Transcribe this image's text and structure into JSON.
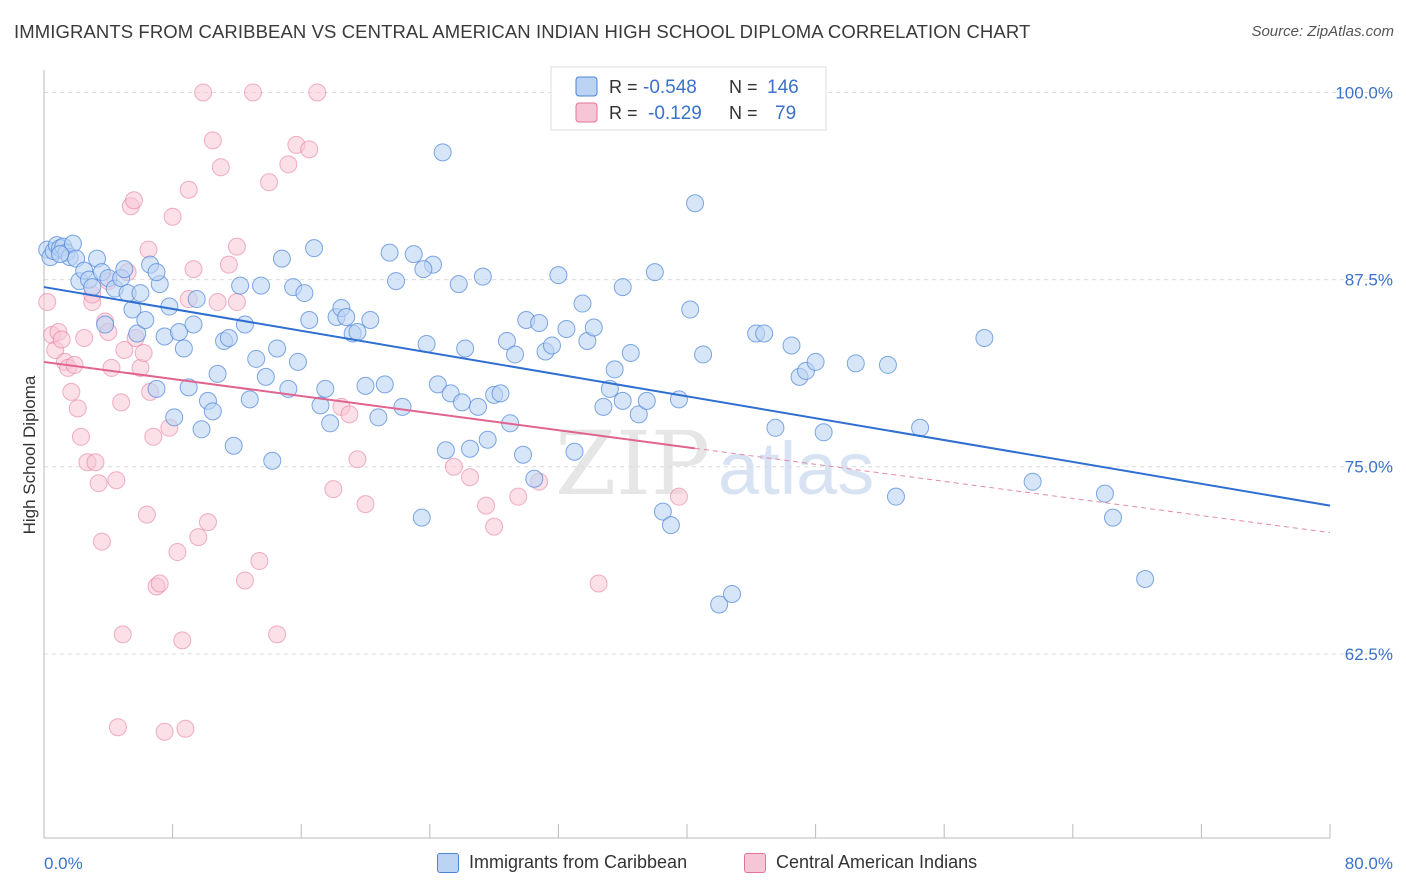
{
  "header": {
    "title": "IMMIGRANTS FROM CARIBBEAN VS CENTRAL AMERICAN INDIAN HIGH SCHOOL DIPLOMA CORRELATION CHART",
    "source": "Source: ZipAtlas.com"
  },
  "legend": {
    "rows": [
      {
        "r_label": "R =",
        "r_value": "-0.548",
        "n_label": "N =",
        "n_value": "146"
      },
      {
        "r_label": "R =",
        "r_value": "-0.129",
        "n_label": "N =",
        "n_value": "79"
      }
    ]
  },
  "bottom_legend": {
    "series1": "Immigrants from Caribbean",
    "series2": "Central American Indians"
  },
  "watermark": {
    "zip": "ZIP",
    "atlas": "atlas"
  },
  "colors": {
    "blue": "#4a84d8",
    "blue_fill": "#bcd4f3",
    "pink": "#e4739b",
    "pink_fill": "#f7c6d6",
    "axis_label": "#3b72c9"
  },
  "chart_data": {
    "type": "scatter",
    "title": "IMMIGRANTS FROM CARIBBEAN VS CENTRAL AMERICAN INDIAN HIGH SCHOOL DIPLOMA CORRELATION CHART",
    "xlabel": "",
    "ylabel": "High School Diploma",
    "xlim": [
      0,
      80
    ],
    "ylim": [
      50.2,
      101.5
    ],
    "x_tick_labels": [
      "0.0%",
      "80.0%"
    ],
    "y_ticks": [
      62.5,
      75.0,
      87.5,
      100.0
    ],
    "y_tick_labels": [
      "62.5%",
      "75.0%",
      "87.5%",
      "100.0%"
    ],
    "grid": true,
    "legend_position": "top-center",
    "series": [
      {
        "name": "Immigrants from Caribbean",
        "color": "#4a84d8",
        "R": -0.548,
        "N": 146,
        "trend": {
          "x": [
            0,
            80
          ],
          "y": [
            87.0,
            72.4
          ]
        },
        "points": [
          [
            0.2,
            89.5
          ],
          [
            0.4,
            89.0
          ],
          [
            0.6,
            89.4
          ],
          [
            0.8,
            89.8
          ],
          [
            1.0,
            89.6
          ],
          [
            1.2,
            89.7
          ],
          [
            1.4,
            89.3
          ],
          [
            1.6,
            89.0
          ],
          [
            1.8,
            89.9
          ],
          [
            2.0,
            88.9
          ],
          [
            2.2,
            87.4
          ],
          [
            2.5,
            88.1
          ],
          [
            2.8,
            87.5
          ],
          [
            3.0,
            87.0
          ],
          [
            3.3,
            88.9
          ],
          [
            3.6,
            88.0
          ],
          [
            3.8,
            84.5
          ],
          [
            4.0,
            87.6
          ],
          [
            4.4,
            86.9
          ],
          [
            4.8,
            87.6
          ],
          [
            5.0,
            88.2
          ],
          [
            5.2,
            86.6
          ],
          [
            5.5,
            85.5
          ],
          [
            5.8,
            83.9
          ],
          [
            6.0,
            86.6
          ],
          [
            6.3,
            84.8
          ],
          [
            6.6,
            88.5
          ],
          [
            7.0,
            80.2
          ],
          [
            7.2,
            87.2
          ],
          [
            7.5,
            83.7
          ],
          [
            7.8,
            85.7
          ],
          [
            8.1,
            78.3
          ],
          [
            8.4,
            84.0
          ],
          [
            8.7,
            82.9
          ],
          [
            9.0,
            80.3
          ],
          [
            9.3,
            84.5
          ],
          [
            9.5,
            86.2
          ],
          [
            9.8,
            77.5
          ],
          [
            10.2,
            79.4
          ],
          [
            10.5,
            78.7
          ],
          [
            10.8,
            81.2
          ],
          [
            11.2,
            83.4
          ],
          [
            11.5,
            83.6
          ],
          [
            11.8,
            76.4
          ],
          [
            12.2,
            87.1
          ],
          [
            12.5,
            84.5
          ],
          [
            12.8,
            79.5
          ],
          [
            13.2,
            82.2
          ],
          [
            13.5,
            87.1
          ],
          [
            13.8,
            81.0
          ],
          [
            14.2,
            75.4
          ],
          [
            14.5,
            82.9
          ],
          [
            14.8,
            88.9
          ],
          [
            15.2,
            80.2
          ],
          [
            15.5,
            87.0
          ],
          [
            15.8,
            82.0
          ],
          [
            16.2,
            86.6
          ],
          [
            16.5,
            84.8
          ],
          [
            16.8,
            89.6
          ],
          [
            17.2,
            79.1
          ],
          [
            17.5,
            80.2
          ],
          [
            17.8,
            77.9
          ],
          [
            18.2,
            85.0
          ],
          [
            18.5,
            85.6
          ],
          [
            18.8,
            85.0
          ],
          [
            19.2,
            83.9
          ],
          [
            19.5,
            84.0
          ],
          [
            20.0,
            80.4
          ],
          [
            20.3,
            84.8
          ],
          [
            20.8,
            78.3
          ],
          [
            21.2,
            80.5
          ],
          [
            21.5,
            89.3
          ],
          [
            21.9,
            87.4
          ],
          [
            22.3,
            79.0
          ],
          [
            23.0,
            89.2
          ],
          [
            23.5,
            71.6
          ],
          [
            23.8,
            83.2
          ],
          [
            24.2,
            88.5
          ],
          [
            24.5,
            80.5
          ],
          [
            25.0,
            76.1
          ],
          [
            25.3,
            79.9
          ],
          [
            25.8,
            87.2
          ],
          [
            26.0,
            79.3
          ],
          [
            26.2,
            82.9
          ],
          [
            26.5,
            76.2
          ],
          [
            27.0,
            79.0
          ],
          [
            27.3,
            87.7
          ],
          [
            27.6,
            76.8
          ],
          [
            28.0,
            79.8
          ],
          [
            28.4,
            79.9
          ],
          [
            28.8,
            83.4
          ],
          [
            29.0,
            77.9
          ],
          [
            29.3,
            82.5
          ],
          [
            29.8,
            75.8
          ],
          [
            30.0,
            84.8
          ],
          [
            30.5,
            74.2
          ],
          [
            30.8,
            84.6
          ],
          [
            31.2,
            82.7
          ],
          [
            31.6,
            83.1
          ],
          [
            32.0,
            87.8
          ],
          [
            32.5,
            84.2
          ],
          [
            33.0,
            76.0
          ],
          [
            33.5,
            85.9
          ],
          [
            33.8,
            83.4
          ],
          [
            34.2,
            84.3
          ],
          [
            34.8,
            79.0
          ],
          [
            35.2,
            80.2
          ],
          [
            35.5,
            81.5
          ],
          [
            36.0,
            79.4
          ],
          [
            36.5,
            82.6
          ],
          [
            37.0,
            78.5
          ],
          [
            37.5,
            79.4
          ],
          [
            38.0,
            88.0
          ],
          [
            38.5,
            72.0
          ],
          [
            39.0,
            71.1
          ],
          [
            39.5,
            79.5
          ],
          [
            40.2,
            85.5
          ],
          [
            41.0,
            82.5
          ],
          [
            42.0,
            65.8
          ],
          [
            42.8,
            66.5
          ],
          [
            44.3,
            83.9
          ],
          [
            44.8,
            83.9
          ],
          [
            45.5,
            77.6
          ],
          [
            46.5,
            83.1
          ],
          [
            47.0,
            81.0
          ],
          [
            47.4,
            81.4
          ],
          [
            48.0,
            82.0
          ],
          [
            48.5,
            77.3
          ],
          [
            50.5,
            81.9
          ],
          [
            52.5,
            81.8
          ],
          [
            53.0,
            73.0
          ],
          [
            54.5,
            77.6
          ],
          [
            58.5,
            83.6
          ],
          [
            61.5,
            74.0
          ],
          [
            66.0,
            73.2
          ],
          [
            66.5,
            71.6
          ],
          [
            68.5,
            67.5
          ],
          [
            24.8,
            96.0
          ],
          [
            40.5,
            92.6
          ],
          [
            23.6,
            88.2
          ],
          [
            36.0,
            87.0
          ],
          [
            7.0,
            88.0
          ],
          [
            1.0,
            89.2
          ]
        ]
      },
      {
        "name": "Central American Indians",
        "color": "#e4739b",
        "R": -0.129,
        "N": 79,
        "trend": {
          "x": [
            0,
            80
          ],
          "y": [
            82.0,
            70.6
          ]
        },
        "trend_solid_until": 40.5,
        "points": [
          [
            0.2,
            86.0
          ],
          [
            0.5,
            83.8
          ],
          [
            0.7,
            82.8
          ],
          [
            0.9,
            84.0
          ],
          [
            1.1,
            83.5
          ],
          [
            1.3,
            82.0
          ],
          [
            1.5,
            81.6
          ],
          [
            1.7,
            80.0
          ],
          [
            1.9,
            81.8
          ],
          [
            2.1,
            78.9
          ],
          [
            2.3,
            77.0
          ],
          [
            2.5,
            83.6
          ],
          [
            2.7,
            75.3
          ],
          [
            3.0,
            86.0
          ],
          [
            3.2,
            75.3
          ],
          [
            3.4,
            73.9
          ],
          [
            3.6,
            70.0
          ],
          [
            3.8,
            84.7
          ],
          [
            4.0,
            84.0
          ],
          [
            4.2,
            81.6
          ],
          [
            4.5,
            74.1
          ],
          [
            4.8,
            79.3
          ],
          [
            4.6,
            57.6
          ],
          [
            4.9,
            63.8
          ],
          [
            5.0,
            82.8
          ],
          [
            5.2,
            88.0
          ],
          [
            5.4,
            92.4
          ],
          [
            5.6,
            92.8
          ],
          [
            5.7,
            83.6
          ],
          [
            6.0,
            81.6
          ],
          [
            6.2,
            82.6
          ],
          [
            6.4,
            71.8
          ],
          [
            6.6,
            80.0
          ],
          [
            6.8,
            77.0
          ],
          [
            7.0,
            67.0
          ],
          [
            7.2,
            67.2
          ],
          [
            7.5,
            57.3
          ],
          [
            7.8,
            77.6
          ],
          [
            8.0,
            91.7
          ],
          [
            8.3,
            69.3
          ],
          [
            8.6,
            63.4
          ],
          [
            8.8,
            57.5
          ],
          [
            9.0,
            86.2
          ],
          [
            9.3,
            88.2
          ],
          [
            9.6,
            70.3
          ],
          [
            9.9,
            100.0
          ],
          [
            10.2,
            71.3
          ],
          [
            10.5,
            96.8
          ],
          [
            10.8,
            86.0
          ],
          [
            11.0,
            95.0
          ],
          [
            11.5,
            88.5
          ],
          [
            12.0,
            86.0
          ],
          [
            12.5,
            67.4
          ],
          [
            13.0,
            100.0
          ],
          [
            13.4,
            68.7
          ],
          [
            14.0,
            94.0
          ],
          [
            14.5,
            63.8
          ],
          [
            15.2,
            95.2
          ],
          [
            15.7,
            96.5
          ],
          [
            16.5,
            96.2
          ],
          [
            17.0,
            100.0
          ],
          [
            18.0,
            73.5
          ],
          [
            18.5,
            79.0
          ],
          [
            19.0,
            78.5
          ],
          [
            19.5,
            75.5
          ],
          [
            20.0,
            72.5
          ],
          [
            25.5,
            75.0
          ],
          [
            26.5,
            74.3
          ],
          [
            27.5,
            72.4
          ],
          [
            28.0,
            71.0
          ],
          [
            29.5,
            73.0
          ],
          [
            30.8,
            74.0
          ],
          [
            34.5,
            67.2
          ],
          [
            39.5,
            73.0
          ],
          [
            9.0,
            93.5
          ],
          [
            12.0,
            89.7
          ],
          [
            4.0,
            87.4
          ],
          [
            3.0,
            86.5
          ],
          [
            6.5,
            89.5
          ]
        ]
      }
    ]
  }
}
